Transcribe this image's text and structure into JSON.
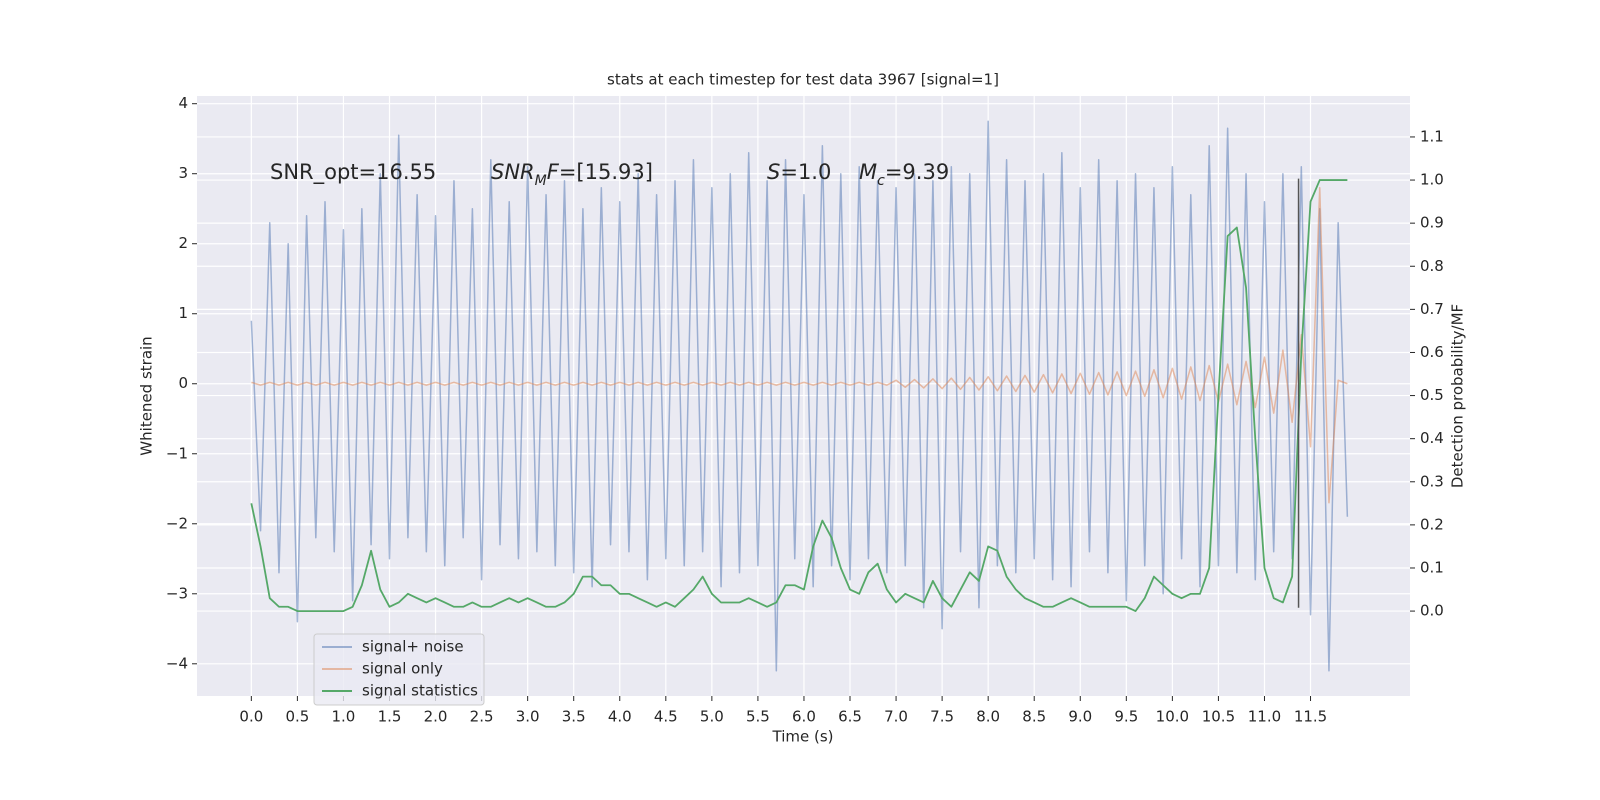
{
  "chart_data": {
    "type": "line",
    "title": "stats at each timestep for test data 3967 [signal=1]",
    "xlabel": "Time (s)",
    "ylabel": "Whitened strain",
    "y2label": "Detection probability/MF",
    "grid": true,
    "legend": "lower left",
    "xlim": [
      -0.59,
      12.58
    ],
    "ylim": [
      -4.46,
      4.11
    ],
    "y2lim": [
      -0.197,
      1.195
    ],
    "xticks": [
      {
        "value": 0,
        "label": "0.0"
      },
      {
        "value": 0.5,
        "label": "0.5"
      },
      {
        "value": 1,
        "label": "1.0"
      },
      {
        "value": 1.5,
        "label": "1.5"
      },
      {
        "value": 2,
        "label": "2.0"
      },
      {
        "value": 2.5,
        "label": "2.5"
      },
      {
        "value": 3,
        "label": "3.0"
      },
      {
        "value": 3.5,
        "label": "3.5"
      },
      {
        "value": 4,
        "label": "4.0"
      },
      {
        "value": 4.5,
        "label": "4.5"
      },
      {
        "value": 5,
        "label": "5.0"
      },
      {
        "value": 5.5,
        "label": "5.5"
      },
      {
        "value": 6,
        "label": "6.0"
      },
      {
        "value": 6.5,
        "label": "6.5"
      },
      {
        "value": 7,
        "label": "7.0"
      },
      {
        "value": 7.5,
        "label": "7.5"
      },
      {
        "value": 8,
        "label": "8.0"
      },
      {
        "value": 8.5,
        "label": "8.5"
      },
      {
        "value": 9,
        "label": "9.0"
      },
      {
        "value": 9.5,
        "label": "9.5"
      },
      {
        "value": 10,
        "label": "10.0"
      },
      {
        "value": 10.5,
        "label": "10.5"
      },
      {
        "value": 11,
        "label": "11.0"
      },
      {
        "value": 11.5,
        "label": "11.5"
      }
    ],
    "yticks": [
      {
        "value": -4,
        "label": "−4"
      },
      {
        "value": -3,
        "label": "−3"
      },
      {
        "value": -2,
        "label": "−2"
      },
      {
        "value": -1,
        "label": "−1"
      },
      0,
      1,
      2,
      3,
      4
    ],
    "y2ticks": [
      {
        "value": 0,
        "label": "0.0"
      },
      0.1,
      0.2,
      0.3,
      0.4,
      0.5,
      0.6,
      0.7,
      0.8,
      0.9,
      {
        "value": 1,
        "label": "1.0"
      },
      1.1
    ],
    "annotations": [
      [
        {
          "t": "SNR_opt=16.55"
        }
      ],
      [
        {
          "t": "SNR",
          "i": true
        },
        {
          "t": "M",
          "i": true,
          "sub": true
        },
        {
          "t": "F",
          "i": true
        },
        {
          "t": "=[15.93]"
        }
      ],
      [
        {
          "t": "S",
          "i": true
        },
        {
          "t": "=1.0"
        }
      ],
      [
        {
          "t": "M",
          "i": true
        },
        {
          "t": "c",
          "i": true,
          "sub": true
        },
        {
          "t": "=9.39"
        }
      ]
    ],
    "vline": {
      "x": 11.37,
      "y": [
        -3.2,
        2.93
      ],
      "color": "#555555"
    },
    "x": [
      0.0,
      0.1,
      0.2,
      0.3,
      0.4,
      0.5,
      0.6,
      0.7,
      0.8,
      0.9,
      1.0,
      1.1,
      1.2,
      1.3,
      1.4,
      1.5,
      1.6,
      1.7,
      1.8,
      1.9,
      2.0,
      2.1,
      2.2,
      2.3,
      2.4,
      2.5,
      2.6,
      2.7,
      2.8,
      2.9,
      3.0,
      3.1,
      3.2,
      3.3,
      3.4,
      3.5,
      3.6,
      3.7,
      3.8,
      3.9,
      4.0,
      4.1,
      4.2,
      4.3,
      4.4,
      4.5,
      4.6,
      4.7,
      4.8,
      4.9,
      5.0,
      5.1,
      5.2,
      5.3,
      5.4,
      5.5,
      5.6,
      5.7,
      5.8,
      5.9,
      6.0,
      6.1,
      6.2,
      6.3,
      6.4,
      6.5,
      6.6,
      6.7,
      6.8,
      6.9,
      7.0,
      7.1,
      7.2,
      7.3,
      7.4,
      7.5,
      7.6,
      7.7,
      7.8,
      7.9,
      8.0,
      8.1,
      8.2,
      8.3,
      8.4,
      8.5,
      8.6,
      8.7,
      8.8,
      8.9,
      9.0,
      9.1,
      9.2,
      9.3,
      9.4,
      9.5,
      9.6,
      9.7,
      9.8,
      9.9,
      10.0,
      10.1,
      10.2,
      10.3,
      10.4,
      10.5,
      10.6,
      10.7,
      10.8,
      10.9,
      11.0,
      11.1,
      11.2,
      11.3,
      11.4,
      11.5,
      11.6,
      11.7,
      11.8,
      11.9
    ],
    "series": [
      {
        "name": "signal+ noise",
        "color": "#4c72b0",
        "opacity": 0.5,
        "values": [
          0.9,
          -2.1,
          2.3,
          -2.7,
          2.0,
          -3.4,
          2.4,
          -2.2,
          2.6,
          -2.4,
          2.2,
          -3.1,
          2.5,
          -2.3,
          3.0,
          -2.5,
          3.55,
          -2.2,
          2.7,
          -2.4,
          2.4,
          -2.6,
          2.9,
          -2.2,
          2.5,
          -2.8,
          3.2,
          -2.3,
          2.6,
          -2.5,
          3.1,
          -2.4,
          2.7,
          -2.6,
          2.9,
          -2.7,
          2.5,
          -2.9,
          2.8,
          -2.3,
          2.6,
          -2.4,
          3.0,
          -2.8,
          2.7,
          -2.5,
          2.9,
          -2.6,
          3.2,
          -2.4,
          2.8,
          -2.9,
          3.0,
          -2.7,
          3.3,
          -2.6,
          2.9,
          -4.1,
          3.2,
          -2.5,
          2.7,
          -2.9,
          3.4,
          -2.6,
          3.0,
          -2.8,
          3.1,
          -2.5,
          2.9,
          -2.7,
          2.8,
          -2.6,
          3.0,
          -3.2,
          2.9,
          -3.5,
          3.1,
          -2.4,
          3.0,
          -3.2,
          3.75,
          -2.6,
          3.2,
          -2.7,
          2.9,
          -2.5,
          3.0,
          -2.8,
          3.3,
          -2.9,
          2.8,
          -2.4,
          3.2,
          -2.7,
          2.9,
          -3.1,
          3.0,
          -2.6,
          2.8,
          -3.0,
          3.1,
          -2.5,
          2.7,
          -2.9,
          3.4,
          -2.6,
          3.65,
          -2.7,
          3.0,
          -2.8,
          2.6,
          -2.4,
          3.0,
          -2.5,
          3.1,
          -3.3,
          2.5,
          -4.1,
          2.3,
          -1.9
        ]
      },
      {
        "name": "signal only",
        "color": "#dd8452",
        "opacity": 0.5,
        "values": [
          0.02,
          -0.02,
          0.02,
          -0.02,
          0.02,
          -0.02,
          0.02,
          -0.02,
          0.02,
          -0.02,
          0.02,
          -0.02,
          0.02,
          -0.02,
          0.02,
          -0.02,
          0.02,
          -0.02,
          0.02,
          -0.02,
          0.02,
          -0.02,
          0.02,
          -0.02,
          0.02,
          -0.02,
          0.02,
          -0.02,
          0.02,
          -0.02,
          0.02,
          -0.02,
          0.02,
          -0.02,
          0.02,
          -0.02,
          0.02,
          -0.02,
          0.02,
          -0.02,
          0.02,
          -0.02,
          0.02,
          -0.02,
          0.02,
          -0.02,
          0.02,
          -0.02,
          0.02,
          -0.02,
          0.02,
          -0.02,
          0.02,
          -0.02,
          0.02,
          -0.02,
          0.02,
          -0.02,
          0.02,
          -0.02,
          0.02,
          -0.02,
          0.02,
          -0.02,
          0.02,
          -0.02,
          0.02,
          -0.02,
          0.02,
          -0.02,
          0.05,
          -0.05,
          0.06,
          -0.06,
          0.07,
          -0.07,
          0.08,
          -0.08,
          0.09,
          -0.09,
          0.1,
          -0.1,
          0.11,
          -0.11,
          0.12,
          -0.12,
          0.13,
          -0.13,
          0.14,
          -0.14,
          0.15,
          -0.15,
          0.16,
          -0.16,
          0.17,
          -0.17,
          0.18,
          -0.18,
          0.2,
          -0.2,
          0.22,
          -0.22,
          0.24,
          -0.24,
          0.26,
          -0.26,
          0.28,
          -0.3,
          0.32,
          -0.34,
          0.38,
          -0.42,
          0.48,
          -0.55,
          0.7,
          -0.9,
          2.8,
          -1.7,
          0.05,
          0.0
        ]
      },
      {
        "name": "signal statistics",
        "color": "#55a868",
        "opacity": 1,
        "axis": "y2",
        "values": [
          0.25,
          0.15,
          0.03,
          0.01,
          0.01,
          0.0,
          0.0,
          0.0,
          0.0,
          0.0,
          0.0,
          0.01,
          0.06,
          0.14,
          0.05,
          0.01,
          0.02,
          0.04,
          0.03,
          0.02,
          0.03,
          0.02,
          0.01,
          0.01,
          0.02,
          0.01,
          0.01,
          0.02,
          0.03,
          0.02,
          0.03,
          0.02,
          0.01,
          0.01,
          0.02,
          0.04,
          0.08,
          0.08,
          0.06,
          0.06,
          0.04,
          0.04,
          0.03,
          0.02,
          0.01,
          0.02,
          0.01,
          0.03,
          0.05,
          0.08,
          0.04,
          0.02,
          0.02,
          0.02,
          0.03,
          0.02,
          0.01,
          0.02,
          0.06,
          0.06,
          0.05,
          0.15,
          0.21,
          0.17,
          0.1,
          0.05,
          0.04,
          0.09,
          0.11,
          0.05,
          0.02,
          0.04,
          0.03,
          0.02,
          0.07,
          0.03,
          0.01,
          0.05,
          0.09,
          0.07,
          0.15,
          0.14,
          0.08,
          0.05,
          0.03,
          0.02,
          0.01,
          0.01,
          0.02,
          0.03,
          0.02,
          0.01,
          0.01,
          0.01,
          0.01,
          0.01,
          0.0,
          0.03,
          0.08,
          0.06,
          0.04,
          0.03,
          0.04,
          0.04,
          0.1,
          0.5,
          0.87,
          0.89,
          0.75,
          0.4,
          0.1,
          0.03,
          0.02,
          0.08,
          0.6,
          0.95,
          1.0,
          1.0,
          1.0,
          1.0
        ]
      }
    ]
  }
}
